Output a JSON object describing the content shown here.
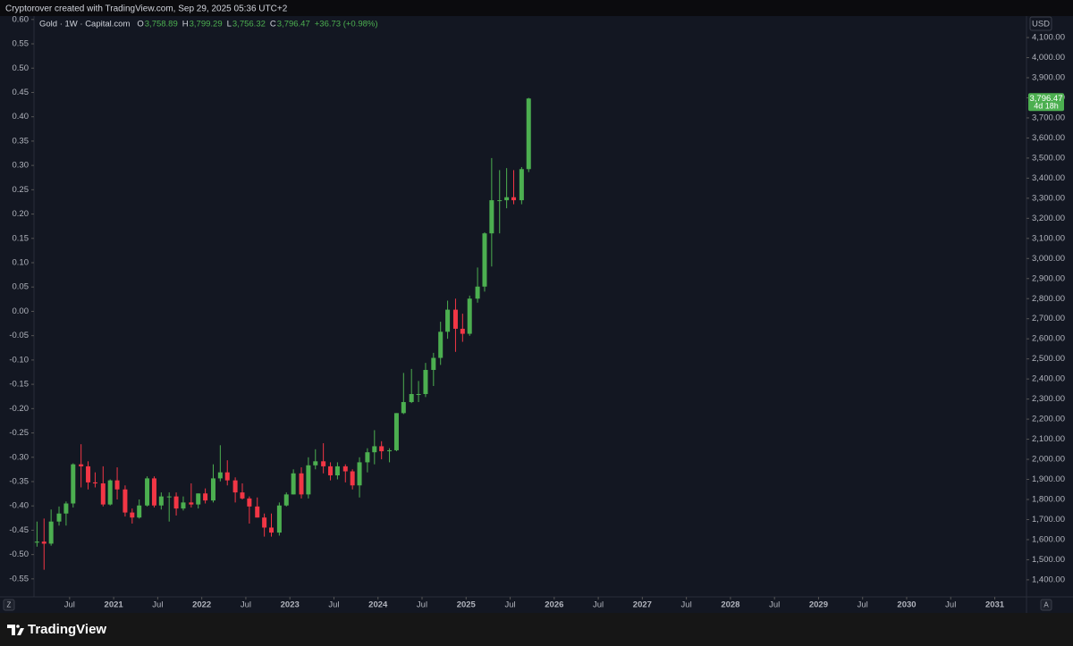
{
  "header": {
    "credit": "Cryptorover created with TradingView.com, Sep 29, 2025 05:36 UTC+2"
  },
  "footer": {
    "brand": "TradingView"
  },
  "chart_data": {
    "type": "candlestick",
    "symbol": "Gold · 1W · Capital.com",
    "ohlc_legend": [
      {
        "key": "O",
        "value": "3,758.89"
      },
      {
        "key": "H",
        "value": "3,799.29"
      },
      {
        "key": "L",
        "value": "3,756.32"
      },
      {
        "key": "C",
        "value": "3,796.47"
      }
    ],
    "change": "+36.73 (+0.98%)",
    "currency": "USD",
    "last_price_label": "3,796.47",
    "countdown": "4d 18h",
    "up_color": "#4caf50",
    "down_color": "#f23645",
    "x": [
      2020.13,
      2020.21,
      2020.29,
      2020.38,
      2020.46,
      2020.54,
      2020.63,
      2020.71,
      2020.79,
      2020.88,
      2020.96,
      2021.04,
      2021.13,
      2021.21,
      2021.29,
      2021.38,
      2021.46,
      2021.54,
      2021.63,
      2021.71,
      2021.79,
      2021.88,
      2021.96,
      2022.04,
      2022.13,
      2022.21,
      2022.29,
      2022.38,
      2022.46,
      2022.54,
      2022.63,
      2022.71,
      2022.79,
      2022.88,
      2022.96,
      2023.04,
      2023.13,
      2023.21,
      2023.29,
      2023.38,
      2023.46,
      2023.54,
      2023.63,
      2023.71,
      2023.79,
      2023.88,
      2023.96,
      2024.04,
      2024.13,
      2024.21,
      2024.29,
      2024.38,
      2024.46,
      2024.54,
      2024.63,
      2024.71,
      2024.79,
      2024.88,
      2024.96,
      2025.04,
      2025.13,
      2025.21,
      2025.29,
      2025.38,
      2025.46,
      2025.54,
      2025.63,
      2025.71
    ],
    "open": [
      1585,
      1590,
      1580,
      1690,
      1730,
      1780,
      1975,
      1965,
      1885,
      1880,
      1775,
      1895,
      1850,
      1735,
      1710,
      1770,
      1905,
      1770,
      1815,
      1815,
      1755,
      1785,
      1775,
      1830,
      1795,
      1905,
      1935,
      1895,
      1835,
      1805,
      1765,
      1710,
      1660,
      1635,
      1770,
      1825,
      1930,
      1825,
      1970,
      1990,
      1965,
      1920,
      1965,
      1940,
      1870,
      1985,
      2035,
      2065,
      2040,
      2045,
      2230,
      2285,
      2325,
      2325,
      2445,
      2505,
      2635,
      2745,
      2650,
      2625,
      2800,
      2860,
      3125,
      3290,
      3290,
      3305,
      3290,
      3445
    ],
    "high": [
      1690,
      1705,
      1750,
      1765,
      1790,
      1980,
      2075,
      1990,
      1935,
      1965,
      1900,
      1960,
      1870,
      1755,
      1800,
      1915,
      1915,
      1835,
      1835,
      1835,
      1815,
      1880,
      1830,
      1855,
      1975,
      2070,
      1995,
      1910,
      1880,
      1815,
      1810,
      1730,
      1730,
      1785,
      1835,
      1950,
      1960,
      2010,
      2050,
      2080,
      1985,
      1985,
      1975,
      1950,
      2010,
      2055,
      2145,
      2090,
      2055,
      2230,
      2430,
      2450,
      2390,
      2480,
      2530,
      2685,
      2790,
      2800,
      2725,
      2815,
      2955,
      3130,
      3500,
      3440,
      3450,
      3440,
      3455,
      3800
    ],
    "low": [
      1565,
      1450,
      1570,
      1670,
      1670,
      1760,
      1860,
      1850,
      1860,
      1765,
      1770,
      1800,
      1715,
      1680,
      1705,
      1765,
      1760,
      1750,
      1690,
      1720,
      1745,
      1760,
      1755,
      1780,
      1785,
      1890,
      1870,
      1785,
      1800,
      1680,
      1710,
      1615,
      1615,
      1620,
      1765,
      1825,
      1805,
      1805,
      1950,
      1930,
      1895,
      1900,
      1885,
      1850,
      1810,
      1935,
      1975,
      2000,
      1985,
      2040,
      2225,
      2280,
      2285,
      2310,
      2365,
      2470,
      2600,
      2535,
      2585,
      2615,
      2780,
      2835,
      2960,
      3125,
      3250,
      3270,
      3270,
      3430
    ],
    "close": [
      1590,
      1580,
      1690,
      1730,
      1780,
      1975,
      1965,
      1885,
      1880,
      1775,
      1895,
      1850,
      1735,
      1710,
      1770,
      1905,
      1770,
      1815,
      1815,
      1755,
      1785,
      1775,
      1830,
      1795,
      1905,
      1935,
      1895,
      1835,
      1805,
      1765,
      1710,
      1660,
      1635,
      1770,
      1825,
      1930,
      1825,
      1970,
      1990,
      1965,
      1920,
      1965,
      1940,
      1870,
      1985,
      2035,
      2065,
      2040,
      2045,
      2230,
      2285,
      2325,
      2325,
      2445,
      2505,
      2635,
      2745,
      2650,
      2625,
      2800,
      2860,
      3125,
      3290,
      3290,
      3305,
      3290,
      3445,
      3796.47
    ],
    "xlim": [
      2019.71,
      2031.36
    ],
    "xticks": [
      {
        "value": 2020.5,
        "label": "Jul"
      },
      2021,
      {
        "value": 2021.5,
        "label": "Jul"
      },
      2022,
      {
        "value": 2022.5,
        "label": "Jul"
      },
      2023,
      {
        "value": 2023.5,
        "label": "Jul"
      },
      2024,
      {
        "value": 2024.5,
        "label": "Jul"
      },
      2025,
      {
        "value": 2025.5,
        "label": "Jul"
      },
      2026,
      {
        "value": 2026.5,
        "label": "Jul"
      },
      2027,
      {
        "value": 2027.5,
        "label": "Jul"
      },
      2028,
      {
        "value": 2028.5,
        "label": "Jul"
      },
      2029,
      {
        "value": 2029.5,
        "label": "Jul"
      },
      2030,
      {
        "value": 2030.5,
        "label": "Jul"
      },
      2031
    ],
    "ylim": [
      1315,
      4207
    ],
    "yticks": [
      {
        "value": 1400,
        "label": "1,400.00"
      },
      {
        "value": 1500,
        "label": "1,500.00"
      },
      {
        "value": 1600,
        "label": "1,600.00"
      },
      {
        "value": 1700,
        "label": "1,700.00"
      },
      {
        "value": 1800,
        "label": "1,800.00"
      },
      {
        "value": 1900,
        "label": "1,900.00"
      },
      {
        "value": 2000,
        "label": "2,000.00"
      },
      {
        "value": 2100,
        "label": "2,100.00"
      },
      {
        "value": 2200,
        "label": "2,200.00"
      },
      {
        "value": 2300,
        "label": "2,300.00"
      },
      {
        "value": 2400,
        "label": "2,400.00"
      },
      {
        "value": 2500,
        "label": "2,500.00"
      },
      {
        "value": 2600,
        "label": "2,600.00"
      },
      {
        "value": 2700,
        "label": "2,700.00"
      },
      {
        "value": 2800,
        "label": "2,800.00"
      },
      {
        "value": 2900,
        "label": "2,900.00"
      },
      {
        "value": 3000,
        "label": "3,000.00"
      },
      {
        "value": 3100,
        "label": "3,100.00"
      },
      {
        "value": 3200,
        "label": "3,200.00"
      },
      {
        "value": 3300,
        "label": "3,300.00"
      },
      {
        "value": 3400,
        "label": "3,400.00"
      },
      {
        "value": 3500,
        "label": "3,500.00"
      },
      {
        "value": 3600,
        "label": "3,600.00"
      },
      {
        "value": 3700,
        "label": "3,700.00"
      },
      {
        "value": 3800,
        "label": "3,800.00"
      },
      {
        "value": 3900,
        "label": "3,900.00"
      },
      {
        "value": 4000,
        "label": "4,000.00"
      },
      {
        "value": 4100,
        "label": "4,100.00"
      }
    ],
    "y2lim": [
      -0.587,
      0.607
    ],
    "y2ticks": [
      {
        "value": 0.6,
        "label": "0.60"
      },
      0.55,
      {
        "value": 0.5,
        "label": "0.50"
      },
      0.45,
      {
        "value": 0.4,
        "label": "0.40"
      },
      0.35,
      {
        "value": 0.3,
        "label": "0.30"
      },
      0.25,
      {
        "value": 0.2,
        "label": "0.20"
      },
      0.15,
      {
        "value": 0.1,
        "label": "0.10"
      },
      0.05,
      {
        "value": 0,
        "label": "0.00"
      },
      -0.05,
      {
        "value": -0.1,
        "label": "-0.10"
      },
      -0.15,
      {
        "value": -0.2,
        "label": "-0.20"
      },
      -0.25,
      {
        "value": -0.3,
        "label": "-0.30"
      },
      -0.35,
      {
        "value": -0.4,
        "label": "-0.40"
      },
      -0.45,
      {
        "value": -0.5,
        "label": "-0.50"
      },
      -0.55
    ],
    "scale_buttons": [
      "Z",
      "A"
    ]
  }
}
